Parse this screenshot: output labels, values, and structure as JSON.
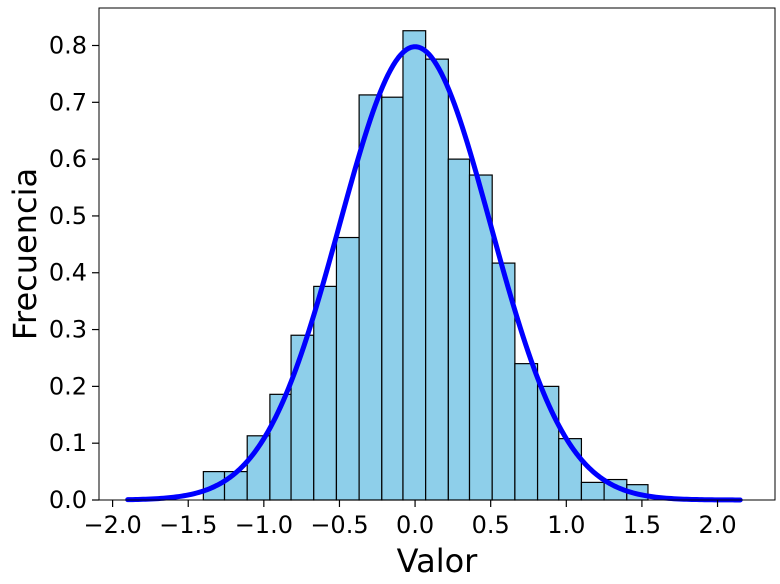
{
  "chart_data": {
    "type": "bar",
    "subtype": "histogram-with-density-curve",
    "title": "",
    "xlabel": "Valor",
    "ylabel": "Frecuencia",
    "xlim": [
      -2.09,
      2.38
    ],
    "ylim": [
      0.0,
      0.866
    ],
    "x_ticks": [
      -2.0,
      -1.5,
      -1.0,
      -0.5,
      0.0,
      0.5,
      1.0,
      1.5,
      2.0
    ],
    "x_tick_labels": [
      "−2.0",
      "−1.5",
      "−1.0",
      "−0.5",
      "0.0",
      "0.5",
      "1.0",
      "1.5",
      "2.0"
    ],
    "y_ticks": [
      0.0,
      0.1,
      0.2,
      0.3,
      0.4,
      0.5,
      0.6,
      0.7,
      0.8
    ],
    "y_tick_labels": [
      "0.0",
      "0.1",
      "0.2",
      "0.3",
      "0.4",
      "0.5",
      "0.6",
      "0.7",
      "0.8"
    ],
    "grid": false,
    "bins": [
      {
        "x0": -1.4,
        "x1": -1.26,
        "value": 0.05
      },
      {
        "x0": -1.26,
        "x1": -1.11,
        "value": 0.05
      },
      {
        "x0": -1.11,
        "x1": -0.96,
        "value": 0.113
      },
      {
        "x0": -0.96,
        "x1": -0.82,
        "value": 0.186
      },
      {
        "x0": -0.82,
        "x1": -0.67,
        "value": 0.29
      },
      {
        "x0": -0.67,
        "x1": -0.52,
        "value": 0.376
      },
      {
        "x0": -0.52,
        "x1": -0.37,
        "value": 0.462
      },
      {
        "x0": -0.37,
        "x1": -0.22,
        "value": 0.713
      },
      {
        "x0": -0.22,
        "x1": -0.08,
        "value": 0.709
      },
      {
        "x0": -0.08,
        "x1": 0.07,
        "value": 0.826
      },
      {
        "x0": 0.07,
        "x1": 0.22,
        "value": 0.776
      },
      {
        "x0": 0.22,
        "x1": 0.36,
        "value": 0.6
      },
      {
        "x0": 0.36,
        "x1": 0.51,
        "value": 0.572
      },
      {
        "x0": 0.51,
        "x1": 0.66,
        "value": 0.417
      },
      {
        "x0": 0.66,
        "x1": 0.81,
        "value": 0.24
      },
      {
        "x0": 0.81,
        "x1": 0.95,
        "value": 0.2
      },
      {
        "x0": 0.95,
        "x1": 1.1,
        "value": 0.108
      },
      {
        "x0": 1.1,
        "x1": 1.25,
        "value": 0.031
      },
      {
        "x0": 1.25,
        "x1": 1.4,
        "value": 0.036
      },
      {
        "x0": 1.4,
        "x1": 1.54,
        "value": 0.027
      }
    ],
    "curve": {
      "kind": "normal-density",
      "mean": 0.0,
      "std": 0.5,
      "x_range": [
        -1.9,
        2.15
      ]
    },
    "colors": {
      "bar_fill": "#8ecfea",
      "bar_edge": "#000000",
      "curve": "#0000ff"
    }
  }
}
